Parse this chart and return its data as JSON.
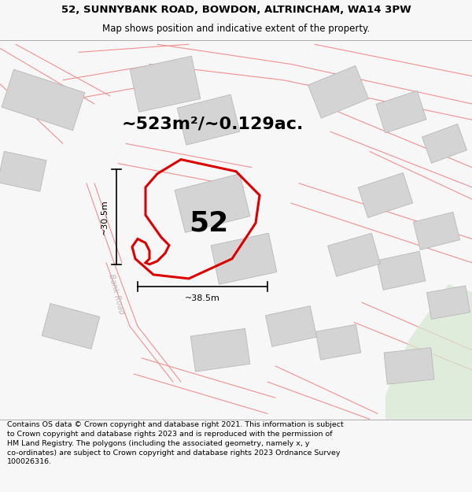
{
  "title_line1": "52, SUNNYBANK ROAD, BOWDON, ALTRINCHAM, WA14 3PW",
  "title_line2": "Map shows position and indicative extent of the property.",
  "area_label": "~523m²/~0.129ac.",
  "plot_number": "52",
  "dim_vertical": "~30.5m",
  "dim_horizontal": "~38.5m",
  "road_label": "Bank Road",
  "footer_text": "Contains OS data © Crown copyright and database right 2021. This information is subject to Crown copyright and database rights 2023 and is reproduced with the permission of HM Land Registry. The polygons (including the associated geometry, namely x, y co-ordinates) are subject to Crown copyright and database rights 2023 Ordnance Survey 100026316.",
  "bg_color": "#f7f7f7",
  "map_bg": "#ffffff",
  "plot_edge": "#dd0000",
  "building_fill": "#d4d4d4",
  "building_edge": "#b0b0b0",
  "street_line_color": "#f09090",
  "footer_bg": "#ffffff",
  "green_patch_color": "#d6e8d0",
  "title_fontsize": 9.5,
  "subtitle_fontsize": 8.5,
  "area_fontsize": 16,
  "plot_num_fontsize": 26,
  "dim_fontsize": 8,
  "road_label_fontsize": 7
}
